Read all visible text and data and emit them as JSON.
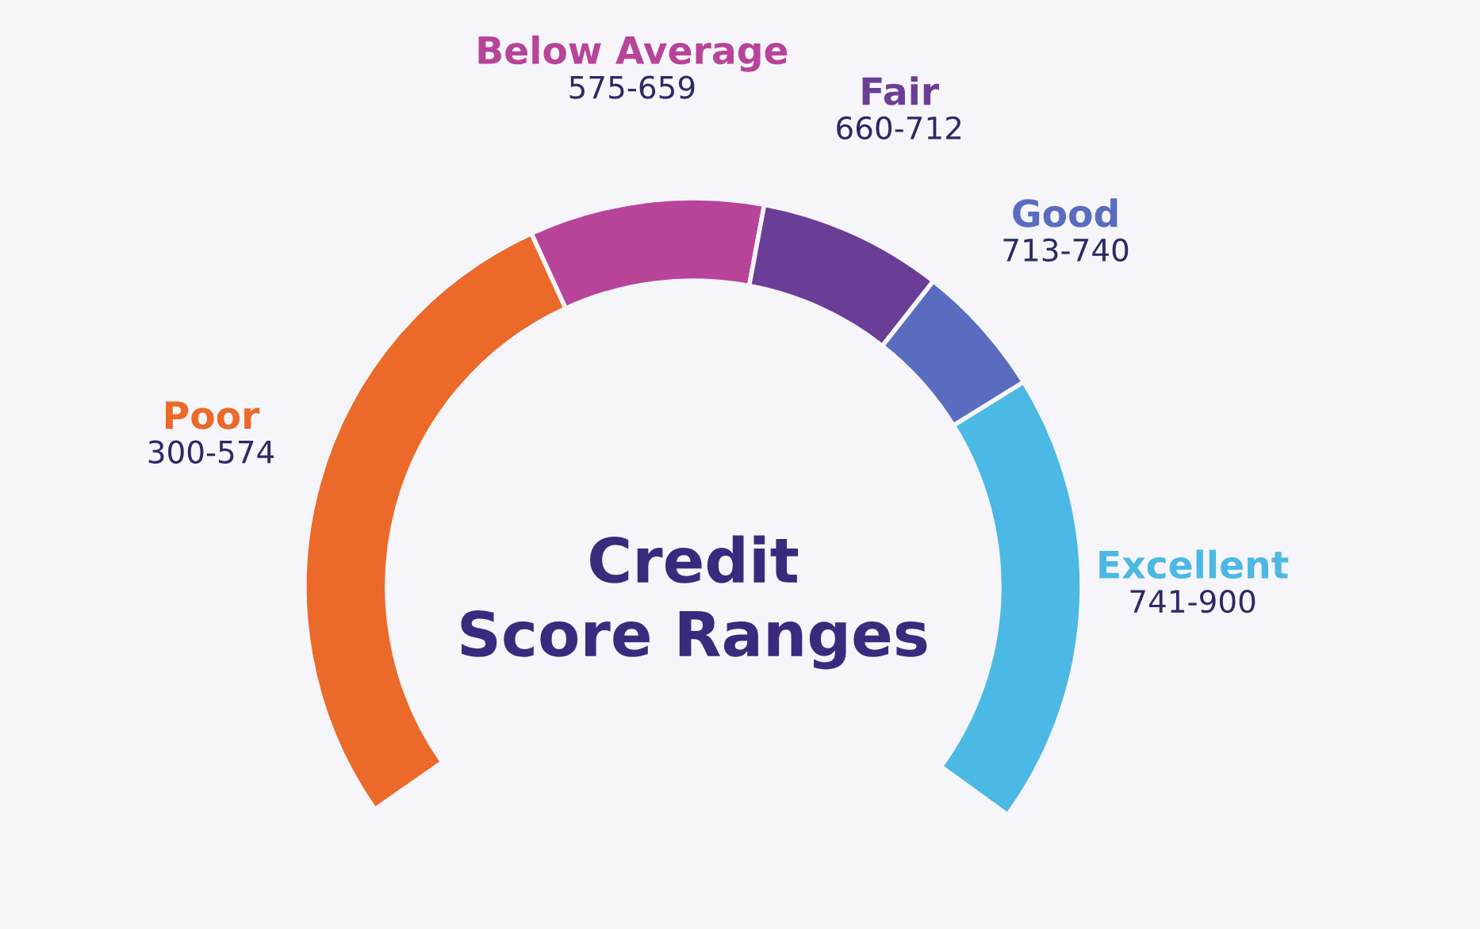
{
  "chart_data": {
    "type": "donut",
    "title": "Credit Score Ranges",
    "categories": [
      "Poor",
      "Below Average",
      "Fair",
      "Good",
      "Excellent"
    ],
    "values": [
      40,
      14,
      11,
      8,
      27
    ],
    "value_labels": [
      "300-574",
      "575-659",
      "660-712",
      "713-740",
      "741-900"
    ],
    "colors": [
      "#eb6a2a",
      "#b8449a",
      "#6a3d96",
      "#5a6cc0",
      "#4cb8e4"
    ],
    "legend": false
  }
}
